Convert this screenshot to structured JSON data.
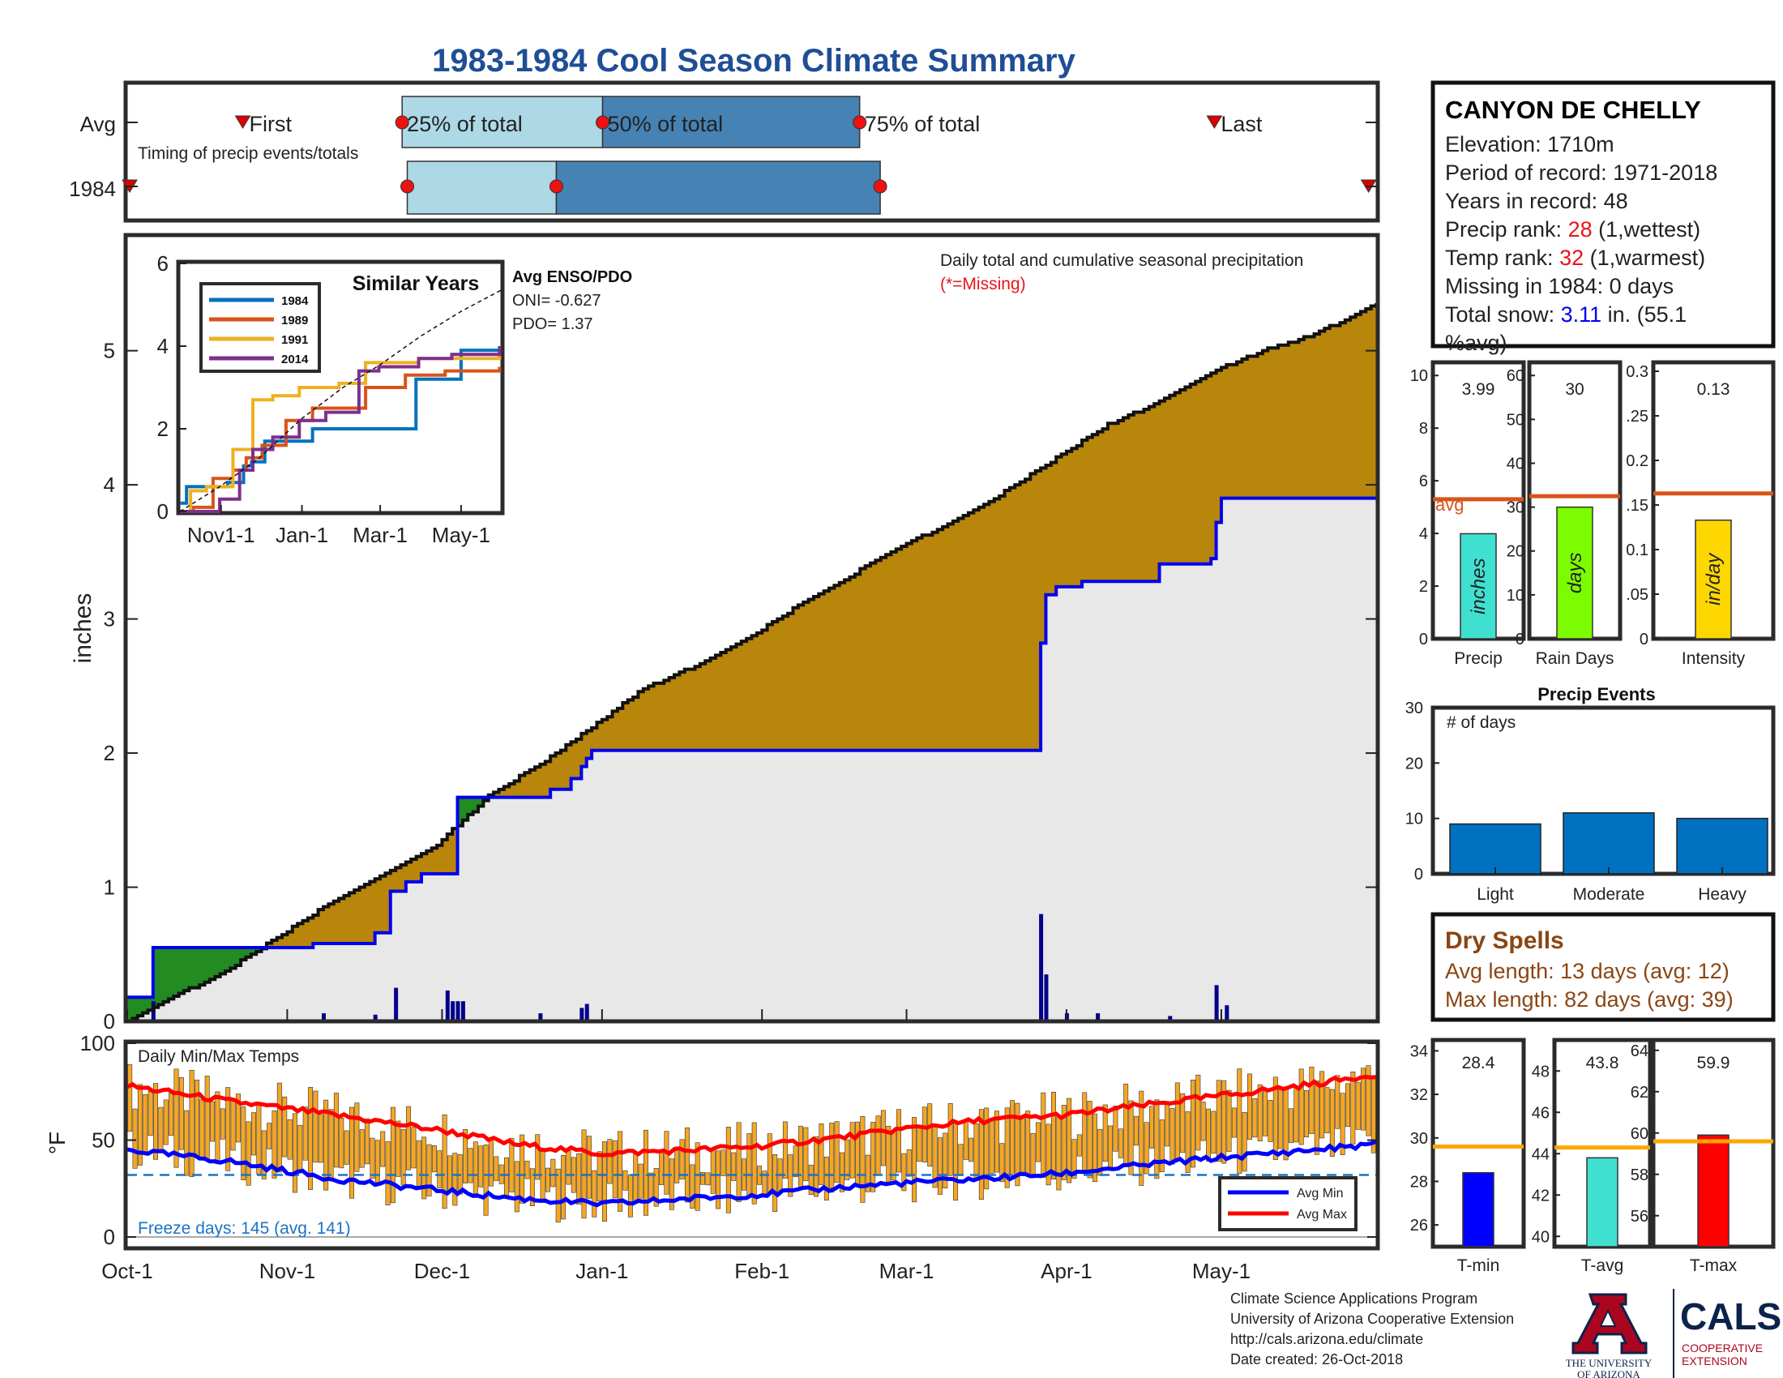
{
  "title": "1983-1984 Cool Season Climate Summary",
  "timing": {
    "row_labels": [
      "Avg",
      "1984"
    ],
    "caption": "Timing of precip events/totals",
    "first_label": "First",
    "last_label": "Last",
    "p25_label": "25% of total",
    "p50_label": "50% of total",
    "p75_label": "75% of total",
    "avg": {
      "first": 22,
      "p25": 53,
      "p50": 92,
      "p75": 142,
      "last": 211
    },
    "y1984": {
      "first": 0,
      "p25": 54,
      "p50": 83,
      "p75": 146,
      "last": 241
    }
  },
  "station": {
    "name": "CANYON DE CHELLY",
    "elevation": "Elevation: 1710m",
    "period": "Period of record: 1971-2018",
    "years": "Years in record: 48",
    "precip_rank_label": "Precip rank: ",
    "precip_rank_value": "28",
    "precip_rank_note": " (1,wettest)",
    "temp_rank_label": "Temp rank: ",
    "temp_rank_value": "32",
    "temp_rank_note": " (1,warmest)",
    "missing": "Missing in 1984: 0 days",
    "snow_label": "Total snow: ",
    "snow_value": "3.11",
    "snow_note": " in. (55.1",
    "snow_note2": "%avg)"
  },
  "main_chart": {
    "title": "Daily total and cumulative seasonal precipitation",
    "missing_note": "(*=Missing)",
    "ylabel": "inches",
    "yticks": [
      "0",
      "1",
      "2",
      "3",
      "4",
      "5"
    ],
    "xticks": [
      "Oct-1",
      "Nov-1",
      "Dec-1",
      "Jan-1",
      "Feb-1",
      "Mar-1",
      "Apr-1",
      "May-1"
    ]
  },
  "similar_years": {
    "title": "Similar Years",
    "legend": [
      "1984",
      "1989",
      "1991",
      "2014"
    ],
    "yticks": [
      "0",
      "2",
      "4",
      "6"
    ],
    "xticks": [
      "Nov1-1",
      "Jan-1",
      "Mar-1",
      "May-1"
    ],
    "enso_title": "Avg ENSO/PDO",
    "oni": "ONI= -0.627",
    "pdo": "PDO= 1.37"
  },
  "summary_bars": {
    "avg_label": "avg",
    "bars": [
      {
        "name": "Precip",
        "value_label": "3.99",
        "unit": "inches",
        "value": 3.99,
        "avg": 5.3,
        "ymax": 10.5,
        "ticks": [
          "0",
          "2",
          "4",
          "6",
          "8",
          "10"
        ],
        "color": "#40e0d0"
      },
      {
        "name": "Rain Days",
        "value_label": "30",
        "unit": "days",
        "value": 30,
        "avg": 32.5,
        "ymax": 63,
        "ticks": [
          "0",
          "10",
          "20",
          "30",
          "40",
          "50",
          "60"
        ],
        "color": "#7cfc00"
      },
      {
        "name": "Intensity",
        "value_label": "0.13",
        "unit": "in/day",
        "value": 0.133,
        "avg": 0.163,
        "ymax": 0.31,
        "ticks": [
          "0",
          ".05",
          "0.1",
          ".15",
          "0.2",
          ".25",
          "0.3"
        ],
        "color": "#ffd700"
      }
    ]
  },
  "precip_events": {
    "title": "Precip Events",
    "ylabel": "# of days",
    "yticks": [
      "0",
      "10",
      "20",
      "30"
    ],
    "categories": [
      "Light",
      "Moderate",
      "Heavy"
    ],
    "values": [
      9,
      11,
      10
    ],
    "color": "#0070c0"
  },
  "dry_spells": {
    "title": "Dry Spells",
    "avg_length": "Avg length: 13 days (avg: 12)",
    "max_length": "Max length: 82 days (avg: 39)"
  },
  "temps_chart": {
    "title": "Daily Min/Max Temps",
    "ylabel": "°F",
    "yticks": [
      "0",
      "50",
      "100"
    ],
    "freeze": "Freeze days: 145 (avg. 141)",
    "legend": [
      "Avg Min",
      "Avg Max"
    ]
  },
  "temp_summary": {
    "avg_line_color": "#ffa500",
    "bars": [
      {
        "name": "T-min",
        "value_label": "28.4",
        "value": 28.4,
        "avg": 29.6,
        "ymin": 25,
        "ymax": 34.5,
        "ticks": [
          "26",
          "28",
          "30",
          "32",
          "34"
        ],
        "color": "#0000ff"
      },
      {
        "name": "T-avg",
        "value_label": "43.8",
        "value": 43.8,
        "avg": 44.3,
        "ymin": 39.5,
        "ymax": 49.5,
        "ticks": [
          "40",
          "42",
          "44",
          "46",
          "48"
        ],
        "color": "#40e0d0"
      },
      {
        "name": "T-max",
        "value_label": "59.9",
        "value": 59.9,
        "avg": 59.6,
        "ymin": 54.5,
        "ymax": 64.5,
        "ticks": [
          "56",
          "58",
          "60",
          "62",
          "64"
        ],
        "color": "#ff0000"
      }
    ]
  },
  "footer": {
    "line1": "Climate Science Applications Program",
    "line2": "University of Arizona Cooperative Extension",
    "line3": "http://cals.arizona.edu/climate",
    "line4": " Date created: 26-Oct-2018"
  },
  "logos": {
    "ua_line1": "THE UNIVERSITY",
    "ua_line2": "OF ARIZONA",
    "cals": "CALS",
    "cals_line1": "COOPERATIVE",
    "cals_line2": "EXTENSION"
  },
  "chart_data": [
    {
      "type": "area",
      "title": "Daily total and cumulative seasonal precipitation",
      "ylabel": "inches",
      "ylim": [
        0,
        5.85
      ],
      "x_unit": "day of season (Oct-1 = 0)",
      "xlim": [
        0,
        242
      ],
      "xticks": {
        "Oct-1": 0,
        "Nov-1": 31,
        "Dec-1": 61,
        "Jan-1": 92,
        "Feb-1": 123,
        "Mar-1": 151,
        "Apr-1": 182,
        "May-1": 212
      },
      "series": [
        {
          "name": "Avg cumulative",
          "x": [
            0,
            20,
            40,
            60,
            70,
            80,
            92,
            100,
            110,
            120,
            130,
            140,
            150,
            160,
            170,
            182,
            190,
            200,
            210,
            220,
            230,
            242
          ],
          "y": [
            0.0,
            0.4,
            0.9,
            1.32,
            1.68,
            1.92,
            2.25,
            2.48,
            2.65,
            2.85,
            3.1,
            3.32,
            3.55,
            3.72,
            3.95,
            4.25,
            4.45,
            4.62,
            4.84,
            5.0,
            5.12,
            5.35
          ]
        },
        {
          "name": "1984 cumulative",
          "x": [
            0,
            4,
            5,
            20,
            32,
            36,
            48,
            51,
            54,
            57,
            62,
            64,
            80,
            82,
            86,
            88,
            89,
            90,
            100,
            140,
            176,
            177,
            178,
            180,
            185,
            200,
            210,
            211,
            212,
            241
          ],
          "y": [
            0.18,
            0.18,
            0.55,
            0.55,
            0.55,
            0.58,
            0.66,
            0.97,
            1.04,
            1.1,
            1.1,
            1.67,
            1.67,
            1.73,
            1.81,
            1.9,
            1.96,
            2.02,
            2.02,
            2.02,
            2.02,
            2.82,
            3.18,
            3.24,
            3.28,
            3.41,
            3.45,
            3.72,
            3.9,
            3.9
          ]
        },
        {
          "name": "Daily precip",
          "x": [
            5,
            38,
            48,
            52,
            62,
            63,
            64,
            65,
            80,
            88,
            89,
            177,
            178,
            182,
            188,
            202,
            211,
            213
          ],
          "y": [
            0.15,
            0.06,
            0.05,
            0.25,
            0.23,
            0.15,
            0.15,
            0.15,
            0.06,
            0.1,
            0.13,
            0.8,
            0.35,
            0.06,
            0.06,
            0.04,
            0.27,
            0.12
          ]
        }
      ]
    },
    {
      "type": "line",
      "title": "Similar Years",
      "ylim": [
        0,
        6
      ],
      "xlim": [
        0,
        242
      ],
      "series": [
        {
          "name": "1984",
          "x": [
            0,
            5,
            20,
            36,
            48,
            54,
            64,
            100,
            140,
            176,
            178,
            212,
            241
          ],
          "y": [
            0.2,
            0.6,
            0.6,
            0.7,
            1.1,
            1.2,
            1.7,
            2.0,
            2.0,
            2.0,
            3.2,
            3.9,
            3.9
          ]
        },
        {
          "name": "1989",
          "x": [
            0,
            10,
            25,
            40,
            50,
            62,
            80,
            100,
            140,
            170,
            200,
            241
          ],
          "y": [
            0.0,
            0.1,
            0.8,
            1.0,
            1.3,
            1.6,
            2.2,
            2.5,
            3.0,
            3.3,
            3.4,
            3.5
          ]
        },
        {
          "name": "1991",
          "x": [
            0,
            8,
            20,
            40,
            55,
            70,
            90,
            120,
            140,
            180,
            200,
            241
          ],
          "y": [
            0.0,
            0.5,
            0.6,
            1.5,
            2.7,
            2.8,
            3.0,
            3.1,
            3.6,
            3.7,
            3.7,
            3.8
          ]
        },
        {
          "name": "2014",
          "x": [
            0,
            15,
            30,
            45,
            55,
            70,
            90,
            110,
            135,
            150,
            180,
            205,
            241
          ],
          "y": [
            0.0,
            0.0,
            0.3,
            1.0,
            1.5,
            1.8,
            2.2,
            2.4,
            3.4,
            3.5,
            3.7,
            3.8,
            4.0
          ]
        },
        {
          "name": "Avg",
          "x": [
            0,
            30,
            60,
            92,
            123,
            151,
            182,
            212,
            242
          ],
          "y": [
            0.0,
            0.6,
            1.3,
            2.25,
            3.0,
            3.55,
            4.25,
            4.84,
            5.35
          ]
        }
      ]
    },
    {
      "type": "bar",
      "title": "Daily Min/Max Temps",
      "ylabel": "°F",
      "ylim": [
        -5,
        100
      ],
      "freeze_line": 32,
      "xlim": [
        0,
        242
      ],
      "series": [
        {
          "name": "Avg Max",
          "x": [
            0,
            20,
            40,
            61,
            75,
            92,
            110,
            123,
            140,
            151,
            165,
            182,
            200,
            212,
            230,
            242
          ],
          "y": [
            78,
            70,
            63,
            55,
            48,
            43,
            45,
            47,
            52,
            56,
            60,
            63,
            69,
            73,
            79,
            84
          ]
        },
        {
          "name": "Avg Min",
          "x": [
            0,
            20,
            40,
            61,
            75,
            92,
            110,
            123,
            140,
            151,
            165,
            182,
            200,
            212,
            230,
            242
          ],
          "y": [
            45,
            39,
            30,
            24,
            20,
            17,
            20,
            22,
            26,
            28,
            30,
            33,
            38,
            41,
            45,
            48
          ]
        }
      ]
    },
    {
      "type": "bar",
      "title": "Precip Events",
      "categories": [
        "Light",
        "Moderate",
        "Heavy"
      ],
      "values": [
        9,
        11,
        10
      ],
      "ylim": [
        0,
        30
      ]
    }
  ]
}
